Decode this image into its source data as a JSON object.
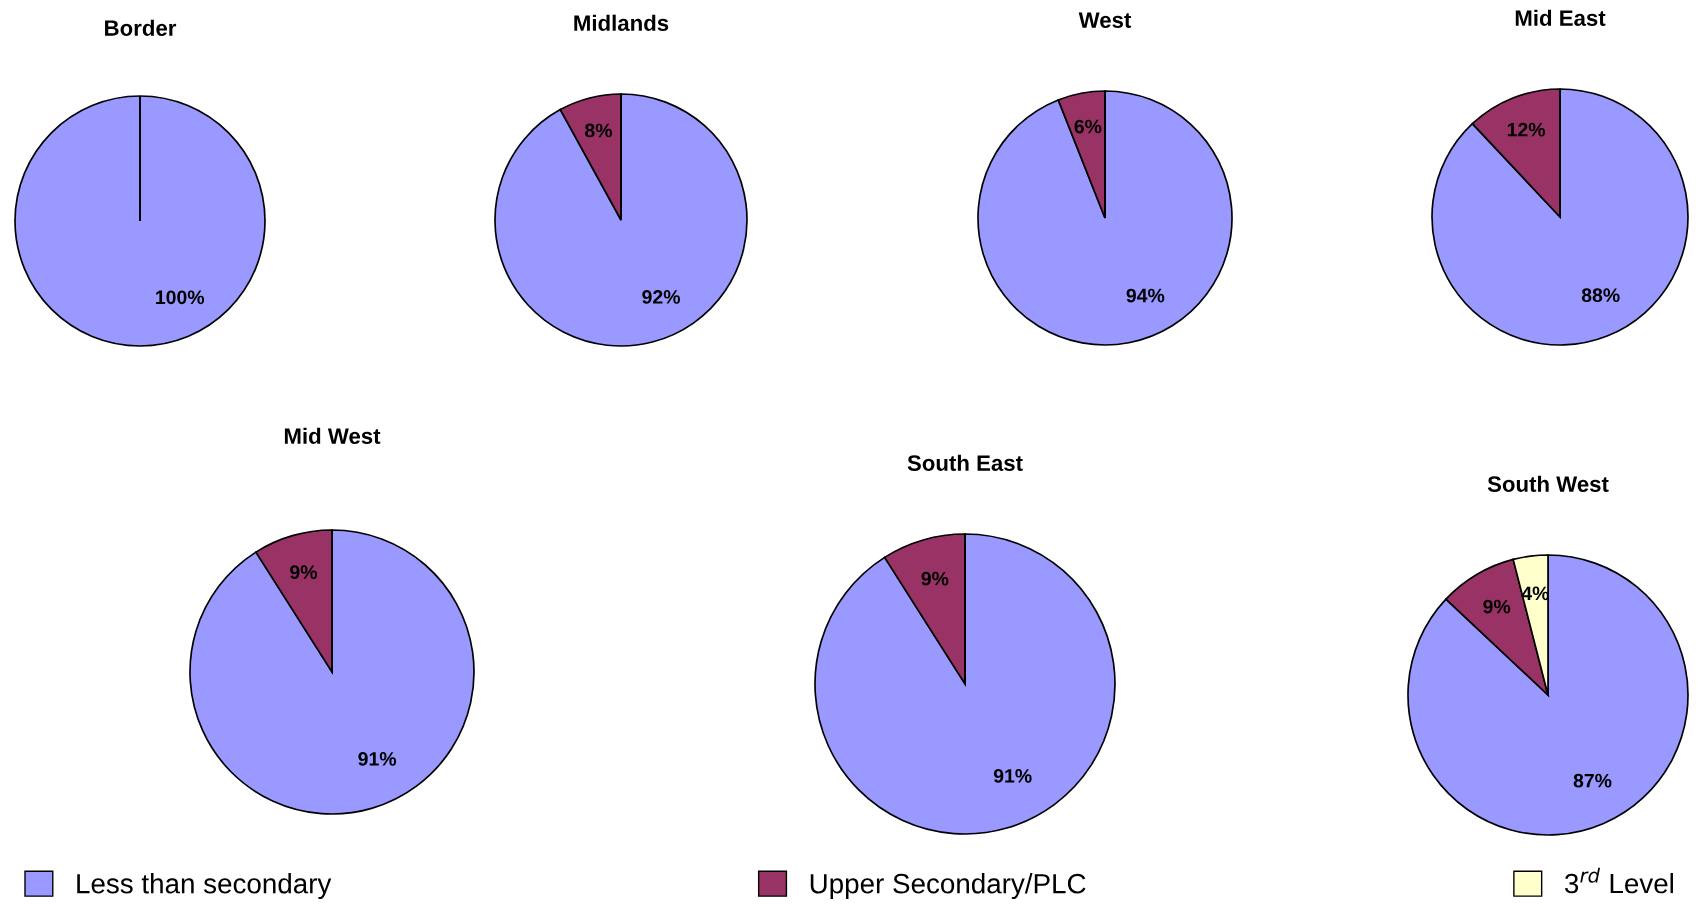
{
  "chart_data": [
    {
      "type": "pie",
      "title": "Border",
      "categories": [
        null,
        null,
        null
      ],
      "values": [
        100,
        0,
        0
      ],
      "colors": [
        "#9999ff",
        "#993366",
        "#ffffcc"
      ],
      "value_labels": [
        "100%",
        null,
        null
      ]
    },
    {
      "type": "pie",
      "title": "Midlands",
      "categories": [
        null,
        null,
        null
      ],
      "values": [
        92,
        8,
        0
      ],
      "colors": [
        "#9999ff",
        "#993366",
        "#ffffcc"
      ],
      "value_labels": [
        "92%",
        "8%",
        null
      ]
    },
    {
      "type": "pie",
      "title": "West",
      "categories": [
        null,
        null,
        null
      ],
      "values": [
        94,
        6,
        0
      ],
      "colors": [
        "#9999ff",
        "#993366",
        "#ffffcc"
      ],
      "value_labels": [
        "94%",
        "6%",
        null
      ]
    },
    {
      "type": "pie",
      "title": "Mid East",
      "categories": [
        null,
        null,
        null
      ],
      "values": [
        88,
        12,
        0
      ],
      "colors": [
        "#9999ff",
        "#993366",
        "#ffffcc"
      ],
      "value_labels": [
        "88%",
        "12%",
        null
      ]
    },
    {
      "type": "pie",
      "title": "Mid West",
      "categories": [
        null,
        null,
        null
      ],
      "values": [
        91,
        9,
        0
      ],
      "colors": [
        "#9999ff",
        "#993366",
        "#ffffcc"
      ],
      "value_labels": [
        "91%",
        "9%",
        null
      ]
    },
    {
      "type": "pie",
      "title": "South East",
      "categories": [
        null,
        null,
        null
      ],
      "values": [
        91,
        9,
        0
      ],
      "colors": [
        "#9999ff",
        "#993366",
        "#ffffcc"
      ],
      "value_labels": [
        "91%",
        "9%",
        null
      ]
    },
    {
      "type": "pie",
      "title": "South West",
      "categories": [
        "Less than secondary",
        "Upper Secondary/PLC",
        "3$^{rd}$ Level"
      ],
      "values": [
        87,
        9,
        4
      ],
      "colors": [
        "#9999ff",
        "#993366",
        "#ffffcc"
      ],
      "value_labels": [
        "87%",
        "9%",
        "4%"
      ],
      "legend": "bottom"
    }
  ]
}
